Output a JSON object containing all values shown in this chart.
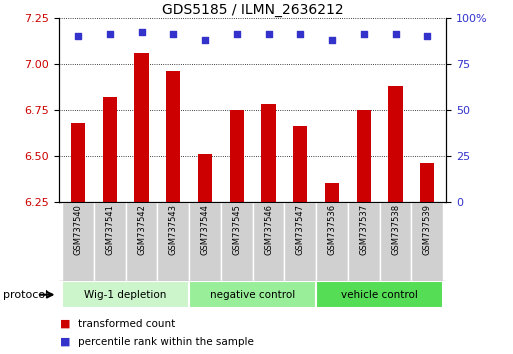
{
  "title": "GDS5185 / ILMN_2636212",
  "samples": [
    "GSM737540",
    "GSM737541",
    "GSM737542",
    "GSM737543",
    "GSM737544",
    "GSM737545",
    "GSM737546",
    "GSM737547",
    "GSM737536",
    "GSM737537",
    "GSM737538",
    "GSM737539"
  ],
  "bar_values": [
    6.68,
    6.82,
    7.06,
    6.96,
    6.51,
    6.75,
    6.78,
    6.66,
    6.35,
    6.75,
    6.88,
    6.46
  ],
  "percentile_values": [
    90,
    91,
    92,
    91,
    88,
    91,
    91,
    91,
    88,
    91,
    91,
    90
  ],
  "bar_color": "#cc0000",
  "percentile_color": "#3333cc",
  "ylim_left": [
    6.25,
    7.25
  ],
  "ylim_right": [
    0,
    100
  ],
  "yticks_left": [
    6.25,
    6.5,
    6.75,
    7.0,
    7.25
  ],
  "yticks_right": [
    0,
    25,
    50,
    75,
    100
  ],
  "groups": [
    {
      "label": "Wig-1 depletion",
      "start": 0,
      "end": 3,
      "color": "#ccf5cc"
    },
    {
      "label": "negative control",
      "start": 4,
      "end": 7,
      "color": "#99ee99"
    },
    {
      "label": "vehicle control",
      "start": 8,
      "end": 11,
      "color": "#55dd55"
    }
  ],
  "protocol_label": "protocol",
  "legend_red": "transformed count",
  "legend_blue": "percentile rank within the sample",
  "background_color": "#ffffff",
  "plot_bg_color": "#ffffff",
  "grid_color": "#000000",
  "tick_label_color_left": "#cc0000",
  "tick_label_color_right": "#3333cc",
  "bar_width": 0.45,
  "sample_box_color": "#d0d0d0"
}
